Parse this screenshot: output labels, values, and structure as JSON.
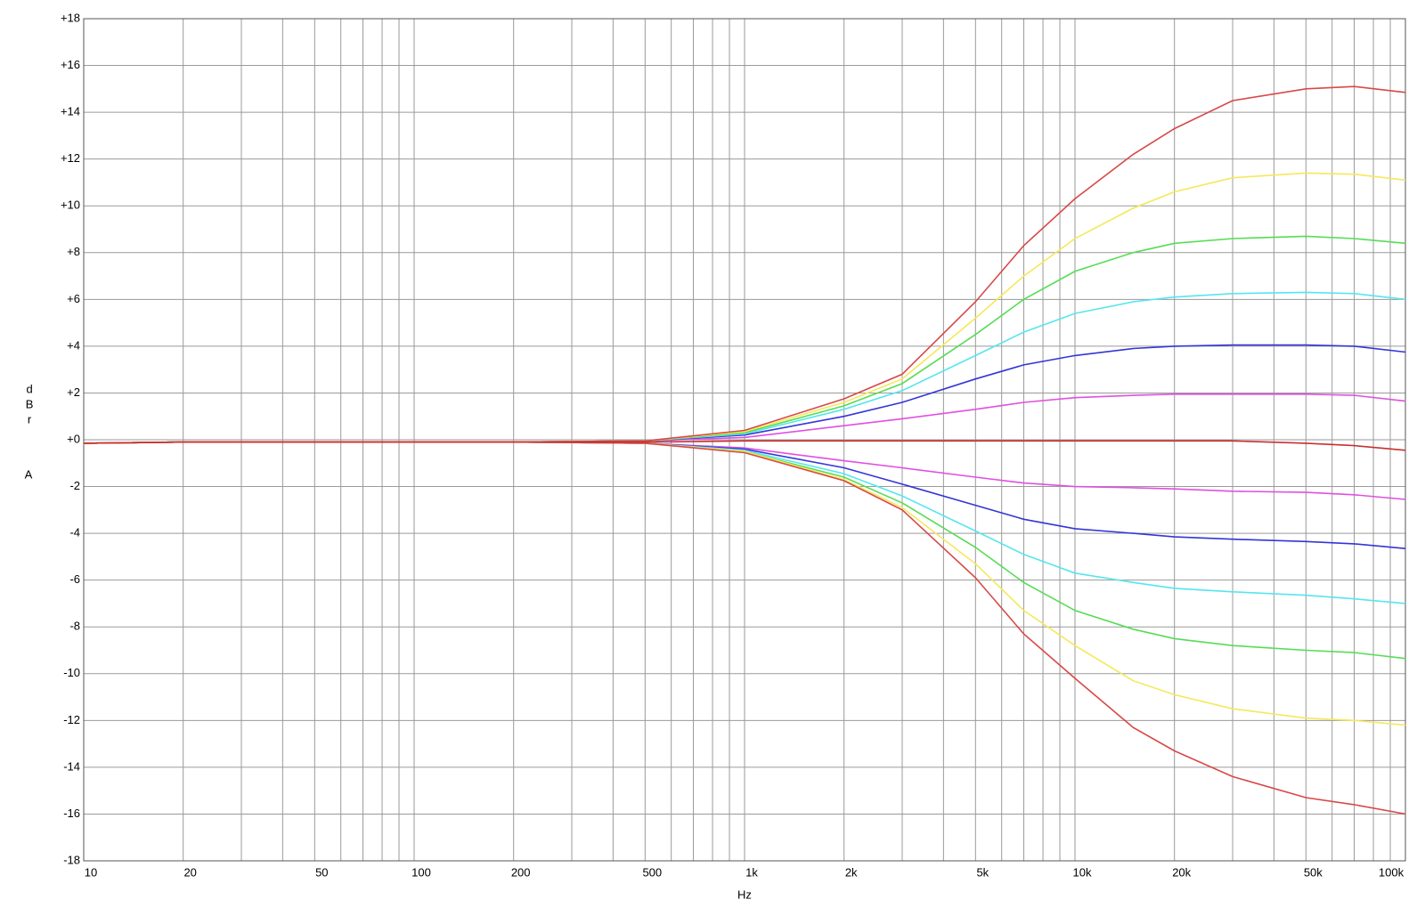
{
  "chart_data": {
    "type": "line",
    "xlabel": "Hz",
    "ylabel": "dBr",
    "ylabel_unit": "A",
    "log_x": true,
    "grid": true,
    "xlim": [
      10,
      100000
    ],
    "ylim": [
      -18,
      18
    ],
    "xticks": [
      10,
      20,
      {
        "value": 30,
        "label": null
      },
      {
        "value": 40,
        "label": null
      },
      50,
      {
        "value": 60,
        "label": null
      },
      {
        "value": 70,
        "label": null
      },
      {
        "value": 80,
        "label": null
      },
      {
        "value": 90,
        "label": null
      },
      100,
      200,
      {
        "value": 300,
        "label": null
      },
      {
        "value": 400,
        "label": null
      },
      500,
      {
        "value": 600,
        "label": null
      },
      {
        "value": 700,
        "label": null
      },
      {
        "value": 800,
        "label": null
      },
      {
        "value": 900,
        "label": null
      },
      {
        "value": 1000,
        "label": "1k"
      },
      {
        "value": 2000,
        "label": "2k"
      },
      {
        "value": 3000,
        "label": null
      },
      {
        "value": 4000,
        "label": null
      },
      {
        "value": 5000,
        "label": "5k"
      },
      {
        "value": 6000,
        "label": null
      },
      {
        "value": 7000,
        "label": null
      },
      {
        "value": 8000,
        "label": null
      },
      {
        "value": 9000,
        "label": null
      },
      {
        "value": 10000,
        "label": "10k"
      },
      {
        "value": 20000,
        "label": "20k"
      },
      {
        "value": 30000,
        "label": null
      },
      {
        "value": 40000,
        "label": null
      },
      {
        "value": 50000,
        "label": "50k"
      },
      {
        "value": 60000,
        "label": null
      },
      {
        "value": 70000,
        "label": null
      },
      {
        "value": 80000,
        "label": null
      },
      {
        "value": 90000,
        "label": null
      },
      {
        "value": 100000,
        "label": "100k"
      }
    ],
    "yticks": [
      {
        "value": 18,
        "label": "+18"
      },
      {
        "value": 16,
        "label": "+16"
      },
      {
        "value": 14,
        "label": "+14"
      },
      {
        "value": 12,
        "label": "+12"
      },
      {
        "value": 10,
        "label": "+10"
      },
      {
        "value": 8,
        "label": "+8"
      },
      {
        "value": 6,
        "label": "+6"
      },
      {
        "value": 4,
        "label": "+4"
      },
      {
        "value": 2,
        "label": "+2"
      },
      {
        "value": 0,
        "label": "+0"
      },
      -2,
      -4,
      -6,
      -8,
      -10,
      -12,
      -14,
      -16,
      -18
    ],
    "x": [
      10,
      20,
      50,
      100,
      200,
      500,
      1000,
      2000,
      3000,
      5000,
      7000,
      10000,
      15000,
      20000,
      30000,
      50000,
      70000,
      100000
    ],
    "series": [
      {
        "color": "#e050e0",
        "values": [
          -0.15,
          -0.1,
          -0.1,
          -0.1,
          -0.1,
          -0.05,
          0.1,
          0.6,
          0.9,
          1.3,
          1.6,
          1.8,
          1.9,
          1.95,
          1.95,
          1.95,
          1.9,
          1.65
        ]
      },
      {
        "color": "#e050e0",
        "values": [
          -0.15,
          -0.1,
          -0.1,
          -0.1,
          -0.1,
          -0.15,
          -0.35,
          -0.9,
          -1.2,
          -1.6,
          -1.85,
          -2.0,
          -2.05,
          -2.1,
          -2.2,
          -2.25,
          -2.35,
          -2.55
        ]
      },
      {
        "color": "#3434d8",
        "values": [
          -0.15,
          -0.1,
          -0.1,
          -0.1,
          -0.1,
          -0.05,
          0.2,
          1.0,
          1.6,
          2.6,
          3.2,
          3.6,
          3.9,
          4.0,
          4.05,
          4.05,
          4.0,
          3.75
        ]
      },
      {
        "color": "#3434d8",
        "values": [
          -0.15,
          -0.1,
          -0.1,
          -0.1,
          -0.1,
          -0.15,
          -0.4,
          -1.2,
          -1.9,
          -2.8,
          -3.4,
          -3.8,
          -4.0,
          -4.15,
          -4.25,
          -4.35,
          -4.45,
          -4.65
        ]
      },
      {
        "color": "#55e6ee",
        "values": [
          -0.15,
          -0.1,
          -0.1,
          -0.1,
          -0.1,
          -0.05,
          0.25,
          1.3,
          2.1,
          3.6,
          4.6,
          5.4,
          5.9,
          6.1,
          6.25,
          6.3,
          6.25,
          6.0
        ]
      },
      {
        "color": "#55e6ee",
        "values": [
          -0.15,
          -0.1,
          -0.1,
          -0.1,
          -0.1,
          -0.15,
          -0.45,
          -1.45,
          -2.4,
          -3.9,
          -4.9,
          -5.7,
          -6.1,
          -6.35,
          -6.5,
          -6.65,
          -6.8,
          -7.0
        ]
      },
      {
        "color": "#55dd55",
        "values": [
          -0.15,
          -0.1,
          -0.1,
          -0.1,
          -0.1,
          -0.05,
          0.3,
          1.45,
          2.4,
          4.5,
          6.0,
          7.2,
          8.0,
          8.4,
          8.6,
          8.7,
          8.6,
          8.4
        ]
      },
      {
        "color": "#55dd55",
        "values": [
          -0.15,
          -0.1,
          -0.1,
          -0.1,
          -0.1,
          -0.15,
          -0.5,
          -1.6,
          -2.7,
          -4.6,
          -6.1,
          -7.3,
          -8.1,
          -8.5,
          -8.8,
          -9.0,
          -9.1,
          -9.35
        ]
      },
      {
        "color": "#f5e85a",
        "values": [
          -0.15,
          -0.1,
          -0.1,
          -0.1,
          -0.1,
          -0.05,
          0.35,
          1.6,
          2.6,
          5.2,
          7.0,
          8.6,
          9.9,
          10.6,
          11.2,
          11.4,
          11.35,
          11.1
        ]
      },
      {
        "color": "#f5e85a",
        "values": [
          -0.15,
          -0.1,
          -0.1,
          -0.1,
          -0.1,
          -0.15,
          -0.5,
          -1.7,
          -2.9,
          -5.3,
          -7.3,
          -8.8,
          -10.3,
          -10.9,
          -11.5,
          -11.9,
          -12.0,
          -12.2
        ]
      },
      {
        "color": "#d84848",
        "values": [
          -0.15,
          -0.1,
          -0.1,
          -0.1,
          -0.1,
          -0.05,
          0.4,
          1.75,
          2.8,
          5.9,
          8.3,
          10.3,
          12.2,
          13.3,
          14.5,
          15.0,
          15.1,
          14.85
        ]
      },
      {
        "color": "#d84848",
        "values": [
          -0.15,
          -0.1,
          -0.1,
          -0.1,
          -0.1,
          -0.15,
          -0.55,
          -1.75,
          -3.0,
          -5.9,
          -8.3,
          -10.2,
          -12.3,
          -13.3,
          -14.4,
          -15.3,
          -15.6,
          -16.0
        ]
      },
      {
        "color": "#c83030",
        "values": [
          -0.15,
          -0.1,
          -0.1,
          -0.1,
          -0.1,
          -0.1,
          -0.05,
          -0.05,
          -0.05,
          -0.05,
          -0.05,
          -0.05,
          -0.05,
          -0.05,
          -0.05,
          -0.15,
          -0.25,
          -0.45
        ]
      }
    ]
  }
}
